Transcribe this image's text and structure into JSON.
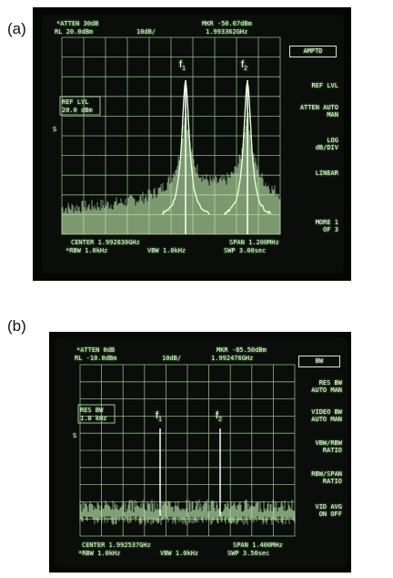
{
  "panels": [
    {
      "id": "a",
      "label": "(a)",
      "header_left_1": "*ATTEN 30dB",
      "header_left_2": "RL 20.0dBm",
      "header_mid": "10dB/",
      "header_right_1": "MKR -50.67dBm",
      "header_right_2": "1.993362GHz",
      "ref_box_1": "REF LVL",
      "ref_box_2": "20.0 dBm",
      "s_mark": "S",
      "footer_left_1": "CENTER 1.992830GHz",
      "footer_left_2": "*RBW 1.0kHz",
      "footer_mid": "VBW 1.0kHz",
      "footer_right_1": "SPAN 1.200MHz",
      "footer_right_2": "SWP 3.00sec",
      "menu_title": "AMPTD",
      "softkeys": [
        "REF LVL",
        "ATTEN AUTO MAN",
        "LOG dB/DIV",
        "LINEAR",
        "MORE 1 OF 3"
      ],
      "peak_labels": [
        "f1",
        "f2"
      ]
    },
    {
      "id": "b",
      "label": "(b)",
      "header_left_1": "*ATTEN 0dB",
      "header_left_2": "RL -10.0dBm",
      "header_mid": "10dB/",
      "header_right_1": "MKR -85.50dBm",
      "header_right_2": "1.992476GHz",
      "ref_box_1": "RES BW",
      "ref_box_2": "1.0 kHz",
      "s_mark": "S",
      "footer_left_1": "CENTER 1.992537GHz",
      "footer_left_2": "*RBW 1.0kHz",
      "footer_mid": "VBW 1.0kHz",
      "footer_right_1": "SPAN 1.400MHz",
      "footer_right_2": "SWP 3.50sec",
      "menu_title": "BW",
      "softkeys": [
        "RES BW AUTO MAN",
        "VIDEO BW AUTO MAN",
        "VBW/RBW RATIO",
        "RBW/SPAN RATIO",
        "VID AVG ON OFF"
      ],
      "peak_labels": [
        "f1",
        "f2"
      ]
    }
  ],
  "colors": {
    "trace": "#c9f7b8",
    "grid": "#bfe9b3",
    "screen": "#0a0d0a"
  }
}
